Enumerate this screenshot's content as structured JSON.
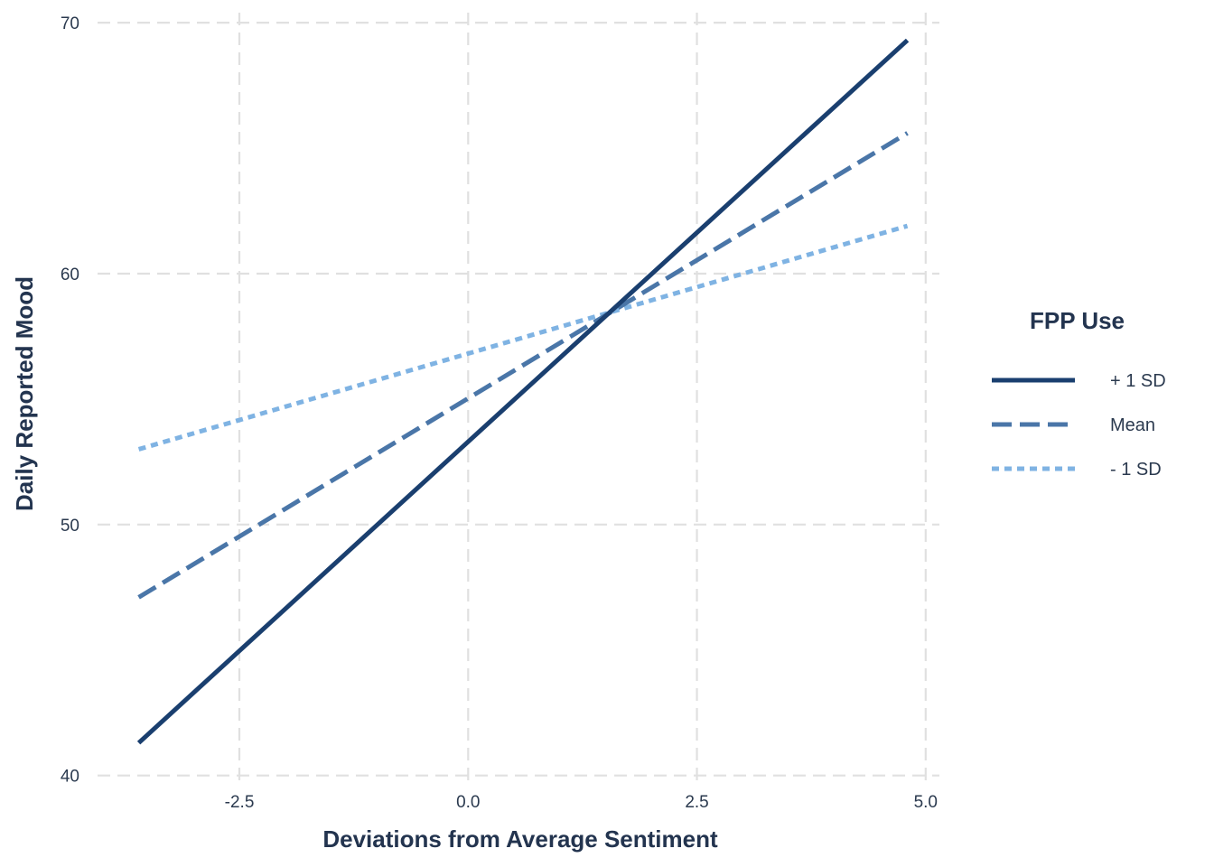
{
  "chart_data": {
    "type": "line",
    "xlabel": "Deviations from Average Sentiment",
    "ylabel": "Daily Reported Mood",
    "xlim": [
      -4.05,
      5.15
    ],
    "ylim": [
      39.7,
      70.4
    ],
    "x_ticks": [
      -2.5,
      0.0,
      2.5,
      5.0
    ],
    "x_tick_labels": [
      "-2.5",
      "0.0",
      "2.5",
      "5.0"
    ],
    "y_ticks": [
      40,
      50,
      60,
      70
    ],
    "y_tick_labels": [
      "40",
      "50",
      "60",
      "70"
    ],
    "grid": true,
    "legend": {
      "title": "FPP Use",
      "position": "right"
    },
    "series": [
      {
        "name": "+ 1 SD",
        "x": [
          -3.6,
          4.8
        ],
        "y": [
          41.3,
          69.3
        ],
        "color": "#1a3f6f",
        "dash": "solid"
      },
      {
        "name": "Mean",
        "x": [
          -3.6,
          4.8
        ],
        "y": [
          47.1,
          65.6
        ],
        "color": "#4a76a8",
        "dash": "dashed"
      },
      {
        "name": "- 1 SD",
        "x": [
          -3.6,
          4.8
        ],
        "y": [
          53.0,
          61.9
        ],
        "color": "#7fb3e3",
        "dash": "dotted"
      }
    ]
  }
}
